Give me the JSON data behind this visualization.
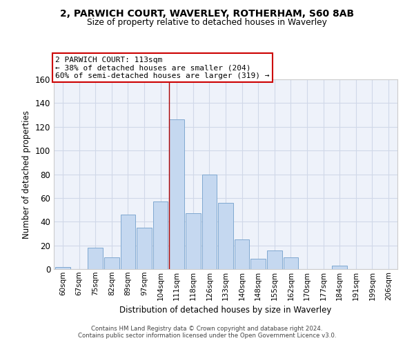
{
  "title_line1": "2, PARWICH COURT, WAVERLEY, ROTHERHAM, S60 8AB",
  "title_line2": "Size of property relative to detached houses in Waverley",
  "xlabel": "Distribution of detached houses by size in Waverley",
  "ylabel": "Number of detached properties",
  "bar_labels": [
    "60sqm",
    "67sqm",
    "75sqm",
    "82sqm",
    "89sqm",
    "97sqm",
    "104sqm",
    "111sqm",
    "118sqm",
    "126sqm",
    "133sqm",
    "140sqm",
    "148sqm",
    "155sqm",
    "162sqm",
    "170sqm",
    "177sqm",
    "184sqm",
    "191sqm",
    "199sqm",
    "206sqm"
  ],
  "bar_values": [
    2,
    0,
    18,
    10,
    46,
    35,
    57,
    126,
    47,
    80,
    56,
    25,
    9,
    16,
    10,
    0,
    0,
    3,
    0,
    0,
    0
  ],
  "bar_color": "#c5d8f0",
  "bar_edge_color": "#7fa8d0",
  "annotation_title": "2 PARWICH COURT: 113sqm",
  "annotation_line1": "← 38% of detached houses are smaller (204)",
  "annotation_line2": "60% of semi-detached houses are larger (319) →",
  "annotation_box_color": "#ffffff",
  "annotation_box_edge": "#cc0000",
  "property_line_index": 7,
  "ylim": [
    0,
    160
  ],
  "yticks": [
    0,
    20,
    40,
    60,
    80,
    100,
    120,
    140,
    160
  ],
  "grid_color": "#d0d8e8",
  "bg_color": "#eef2fa",
  "footer_line1": "Contains HM Land Registry data © Crown copyright and database right 2024.",
  "footer_line2": "Contains public sector information licensed under the Open Government Licence v3.0."
}
